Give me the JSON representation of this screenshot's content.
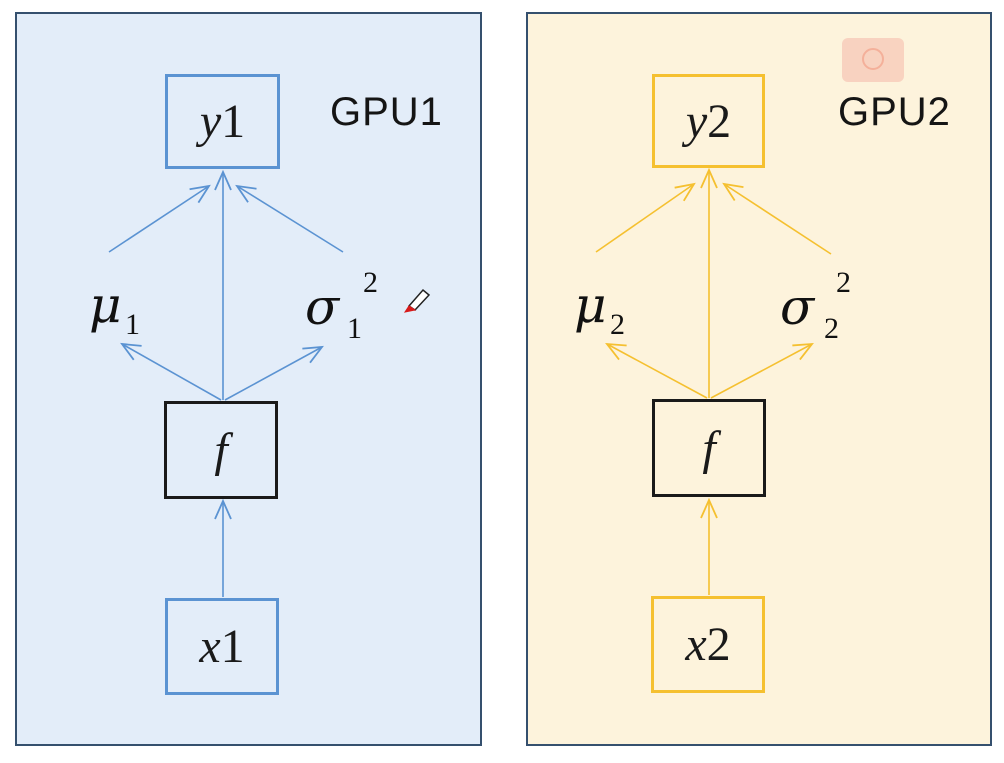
{
  "colors": {
    "panel1_bg": "#e3edf9",
    "panel2_bg": "#fdf3dc",
    "panel1_accent": "#5b93d2",
    "panel2_accent": "#f5c030",
    "f_border": "#1a1a1a"
  },
  "panels": [
    {
      "gpu_label": "GPU1",
      "output_var": "y",
      "output_num": "1",
      "input_var": "x",
      "input_num": "1",
      "func": "f",
      "mu": "μ",
      "mu_sub": "1",
      "sigma": "σ",
      "sigma_sub": "1",
      "sigma_sup": "2"
    },
    {
      "gpu_label": "GPU2",
      "output_var": "y",
      "output_num": "2",
      "input_var": "x",
      "input_num": "2",
      "func": "f",
      "mu": "μ",
      "mu_sub": "2",
      "sigma": "σ",
      "sigma_sub": "2",
      "sigma_sup": "2"
    }
  ],
  "icons": [
    "pen-annotation-icon",
    "record-icon"
  ]
}
